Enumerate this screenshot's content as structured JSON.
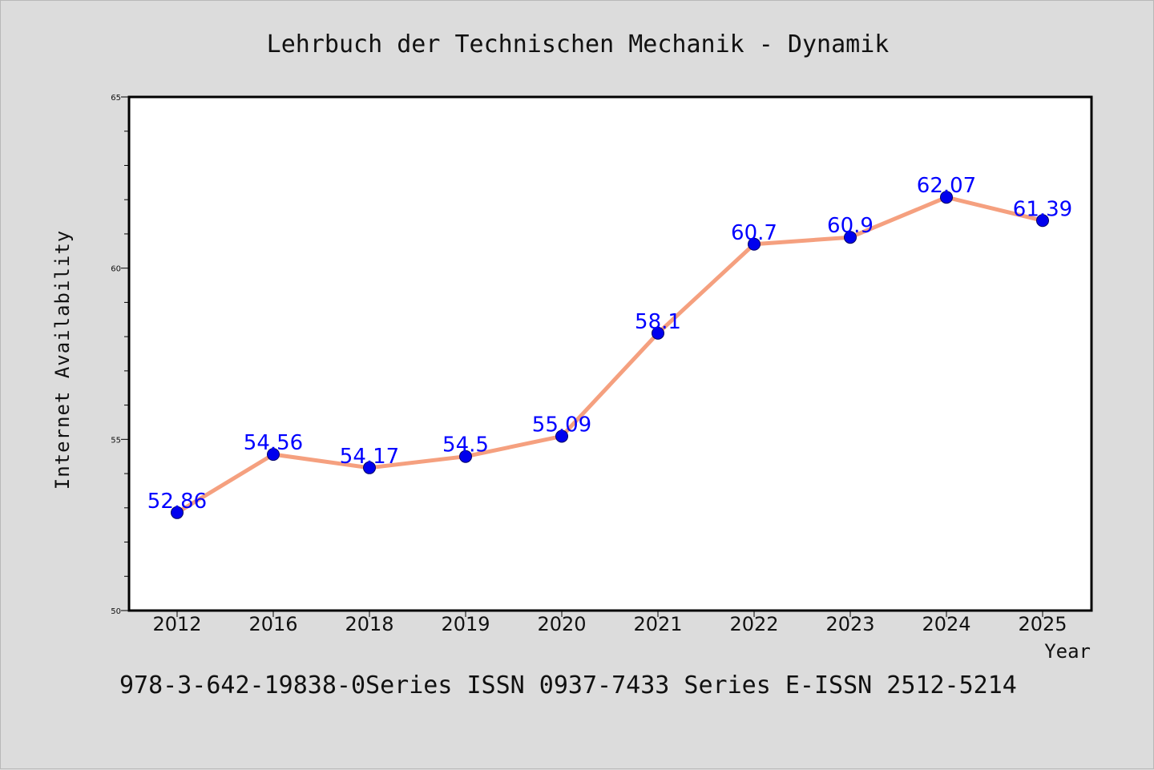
{
  "chart_data": {
    "type": "line",
    "title": "Lehrbuch der Technischen Mechanik - Dynamik",
    "xlabel": "Year",
    "ylabel": "Internet Availability",
    "categories": [
      "2012",
      "2016",
      "2018",
      "2019",
      "2020",
      "2021",
      "2022",
      "2023",
      "2024",
      "2025"
    ],
    "series": [
      {
        "values": [
          52.86,
          54.56,
          54.17,
          54.5,
          55.09,
          58.1,
          60.7,
          60.9,
          62.07,
          61.39
        ],
        "labels": [
          "52.86",
          "54.56",
          "54.17",
          "54.5",
          "55.09",
          "58.1",
          "60.7",
          "60.9",
          "62.07",
          "61.39"
        ]
      }
    ],
    "ylim": [
      50,
      65
    ],
    "yticks": [
      "50",
      "55",
      "60",
      "65"
    ],
    "grid": false,
    "legend": "none",
    "colors": {
      "line": "#f5a07f",
      "marker": "#0000ee",
      "marker_edge": "#000066",
      "data_label": "#0000ff"
    }
  },
  "footer": "978-3-642-19838-0Series ISSN 0937-7433 Series E-ISSN 2512-5214"
}
